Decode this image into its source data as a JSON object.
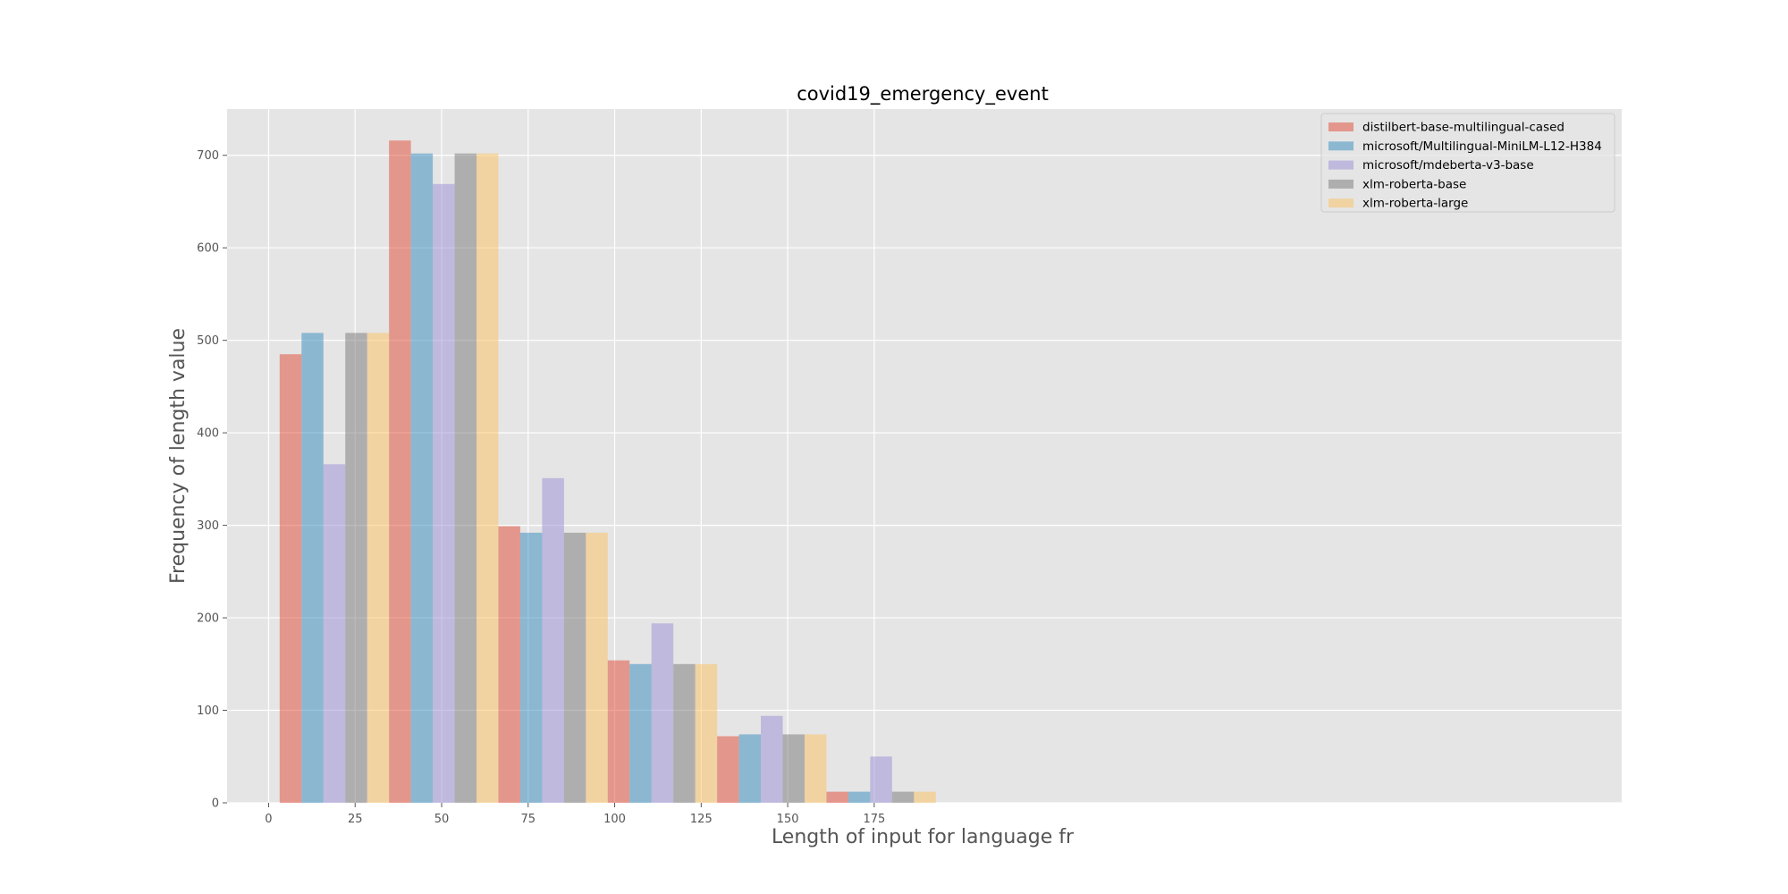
{
  "chart_data": {
    "type": "bar",
    "title": "covid19_emergency_event",
    "xlabel": "Length of input for language fr",
    "ylabel": "Frequency of length value",
    "xlim": [
      -12,
      391
    ],
    "ylim": [
      0,
      750
    ],
    "xticks": [
      0,
      25,
      50,
      75,
      100,
      125,
      150,
      175
    ],
    "yticks": [
      0,
      100,
      200,
      300,
      400,
      500,
      600,
      700
    ],
    "grid": true,
    "legend_position": "top-right",
    "bin_edges": [
      3.2,
      34.8,
      66.4,
      98.0,
      129.6,
      161.2,
      192.8
    ],
    "series": [
      {
        "name": "distilbert-base-multilingual-cased",
        "color": "#E24A33",
        "values": [
          485,
          716,
          299,
          154,
          72,
          12
        ]
      },
      {
        "name": "microsoft/Multilingual-MiniLM-L12-H384",
        "color": "#348ABD",
        "values": [
          508,
          702,
          292,
          150,
          74,
          12
        ]
      },
      {
        "name": "microsoft/mdeberta-v3-base",
        "color": "#988ED5",
        "values": [
          366,
          669,
          351,
          194,
          94,
          50
        ]
      },
      {
        "name": "xlm-roberta-base",
        "color": "#777777",
        "values": [
          508,
          702,
          292,
          150,
          74,
          12
        ]
      },
      {
        "name": "xlm-roberta-large",
        "color": "#FBC15E",
        "values": [
          508,
          702,
          292,
          150,
          74,
          12
        ]
      }
    ]
  }
}
